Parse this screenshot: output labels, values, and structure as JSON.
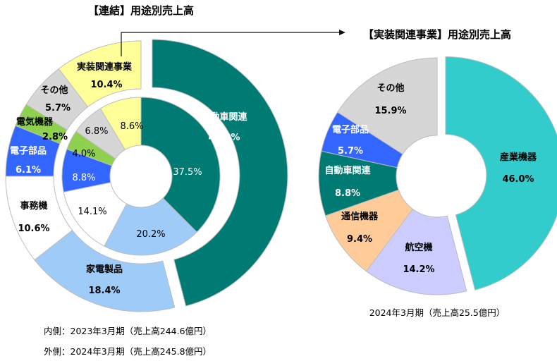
{
  "chart_data": [
    {
      "type": "pie",
      "title": "【連結】用途別売上高",
      "inner_caption": "内側：2023年3月期（売上高244.6億円）",
      "outer_caption": "外側：2024年3月期（売上高245.8億円）",
      "categories": [
        "自動車関連",
        "家電製品",
        "事務機",
        "電子部品",
        "電気機器",
        "その他",
        "実装関連事業"
      ],
      "series": [
        {
          "name": "内側",
          "values": [
            37.5,
            20.2,
            14.1,
            8.8,
            4.0,
            6.8,
            8.6
          ]
        },
        {
          "name": "外側",
          "values": [
            46.0,
            18.4,
            10.6,
            6.1,
            2.8,
            5.7,
            10.4
          ]
        }
      ],
      "inner_labels": [
        "37.5%",
        "20.2%",
        "14.1%",
        "8.8%",
        "4.0%",
        "6.8%",
        "8.6%"
      ],
      "outer_labels": [
        {
          "name": "自動車関連",
          "value": "46.0%"
        },
        {
          "name": "家電製品",
          "value": "18.4%"
        },
        {
          "name": "事務機",
          "value": "10.6%"
        },
        {
          "name": "電子部品",
          "value": "6.1%"
        },
        {
          "name": "電気機器",
          "value": "2.8%"
        },
        {
          "name": "その他",
          "value": "5.7%"
        },
        {
          "name": "実装関連事業",
          "value": "10.4%"
        }
      ],
      "colors": [
        "#007b73",
        "#9ecbf7",
        "#ffffff",
        "#3366ff",
        "#8fd14f",
        "#d6d6d6",
        "#ffff99"
      ]
    },
    {
      "type": "pie",
      "title": "【実装関連事業】用途別売上高",
      "caption": "2024年3月期（売上高25.5億円）",
      "categories": [
        "産業機器",
        "航空機",
        "通信機器",
        "自動車関連",
        "電子部品",
        "その他"
      ],
      "values": [
        46.0,
        14.2,
        9.4,
        8.8,
        5.7,
        15.9
      ],
      "labels": [
        {
          "name": "産業機器",
          "value": "46.0%"
        },
        {
          "name": "航空機",
          "value": "14.2%"
        },
        {
          "name": "通信機器",
          "value": "9.4%"
        },
        {
          "name": "自動車関連",
          "value": "8.8%"
        },
        {
          "name": "電子部品",
          "value": "5.7%"
        },
        {
          "name": "その他",
          "value": "15.9%"
        }
      ],
      "colors": [
        "#33cccc",
        "#ccccff",
        "#ffcc99",
        "#007b73",
        "#3366ff",
        "#d6d6d6"
      ]
    }
  ]
}
